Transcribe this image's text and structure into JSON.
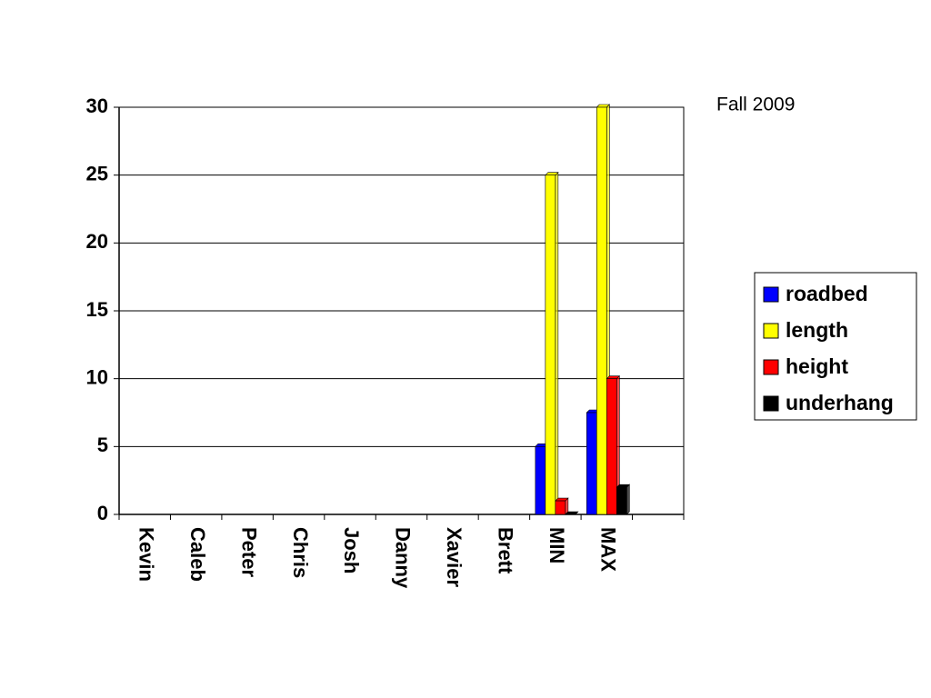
{
  "chart_data": {
    "type": "bar",
    "annotation": "Fall 2009",
    "categories": [
      "Kevin",
      "Caleb",
      "Peter",
      "Chris",
      "Josh",
      "Danny",
      "Xavier",
      "Brett",
      "MIN",
      "MAX",
      null
    ],
    "series": [
      {
        "name": "roadbed",
        "color": "#0000ff",
        "values": [
          null,
          null,
          null,
          null,
          null,
          null,
          null,
          null,
          5,
          7.5,
          null
        ]
      },
      {
        "name": "length",
        "color": "#ffff00",
        "values": [
          null,
          null,
          null,
          null,
          null,
          null,
          null,
          null,
          25,
          30,
          null
        ]
      },
      {
        "name": "height",
        "color": "#ff0000",
        "values": [
          null,
          null,
          null,
          null,
          null,
          null,
          null,
          null,
          1,
          10,
          null
        ]
      },
      {
        "name": "underhang",
        "color": "#000000",
        "values": [
          null,
          null,
          null,
          null,
          null,
          null,
          null,
          null,
          0,
          2,
          null
        ]
      }
    ],
    "ylim": [
      0,
      30
    ],
    "yticks": [
      0,
      5,
      10,
      15,
      20,
      25,
      30
    ],
    "grid": true,
    "legend": "right"
  }
}
